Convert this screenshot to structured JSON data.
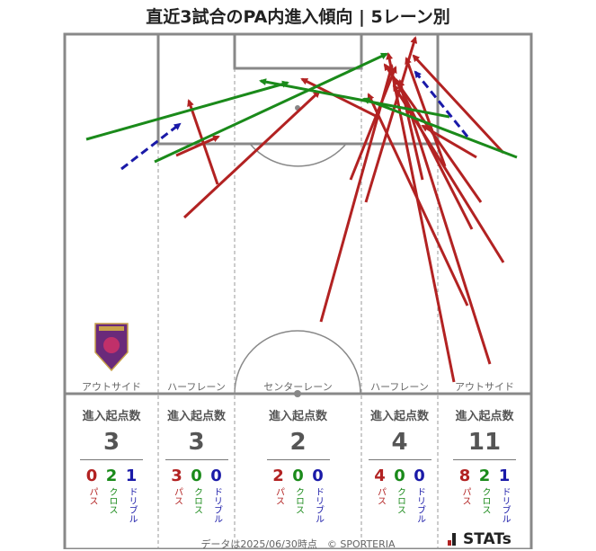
{
  "title": "直近3試合のPA内進入傾向 | 5レーン別",
  "lanes": [
    {
      "name": "アウトサイド",
      "total": "3",
      "pass": "0",
      "cross": "2",
      "dribble": "1"
    },
    {
      "name": "ハーフレーン",
      "total": "3",
      "pass": "3",
      "cross": "0",
      "dribble": "0"
    },
    {
      "name": "センターレーン",
      "total": "2",
      "pass": "2",
      "cross": "0",
      "dribble": "0"
    },
    {
      "name": "ハーフレーン",
      "total": "4",
      "pass": "4",
      "cross": "0",
      "dribble": "0"
    },
    {
      "name": "アウトサイド",
      "total": "11",
      "pass": "8",
      "cross": "2",
      "dribble": "1"
    }
  ],
  "stats_header": "進入起点数",
  "labels": {
    "pass": "パス",
    "cross": "クロス",
    "dribble": "ドリブル"
  },
  "footer": "データは2025/06/30時点　© SPORTERIA",
  "brand": "STATs",
  "colors": {
    "pass": "#b22222",
    "cross": "#1a8a1a",
    "dribble": "#1a1aa8"
  },
  "logo_icon": "team-crest-icon"
}
